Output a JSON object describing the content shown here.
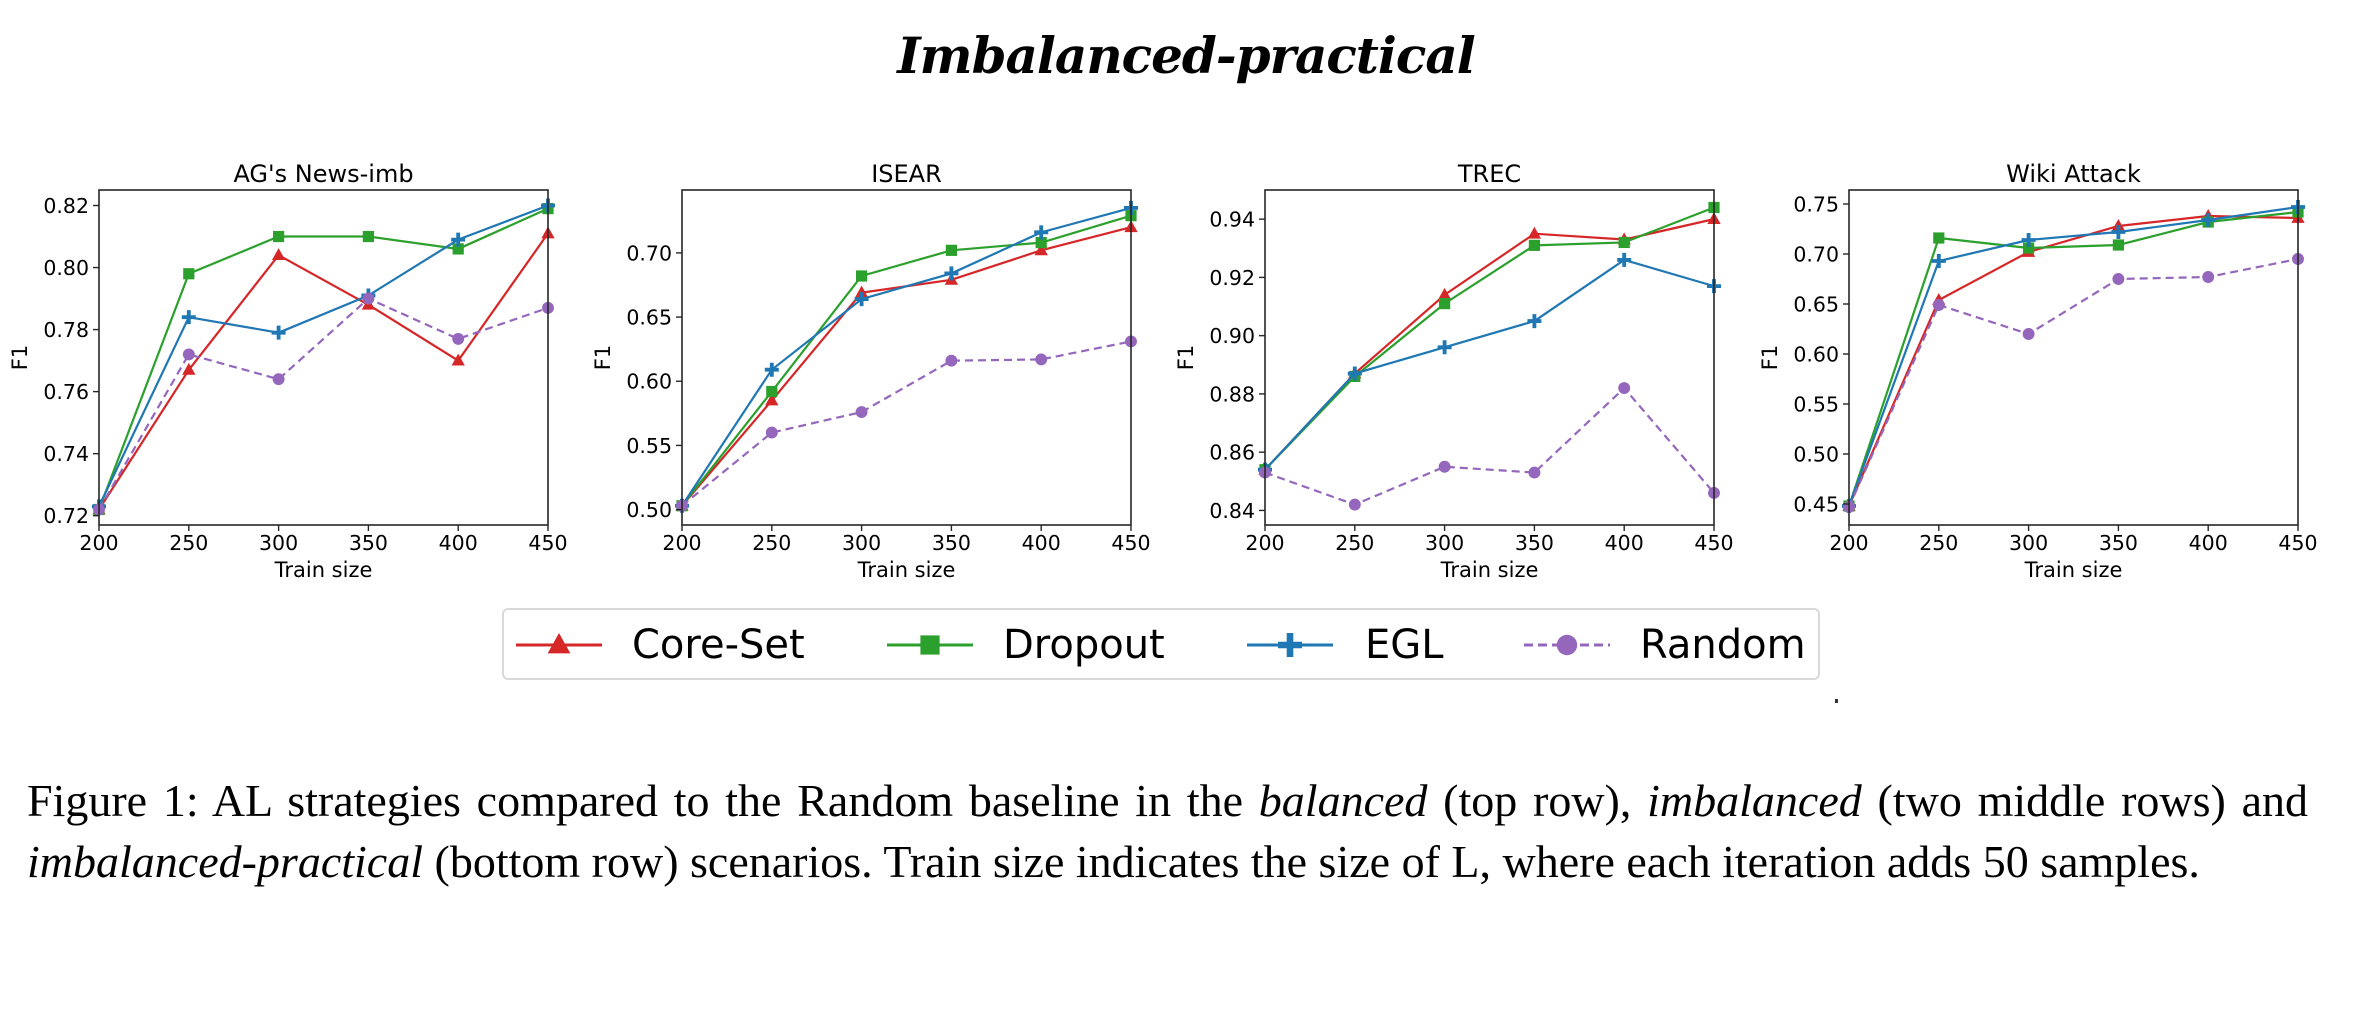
{
  "figure_title": "Imbalanced-practical",
  "colors": {
    "core_set": "#d62728",
    "dropout": "#2ca02c",
    "egl": "#1f77b4",
    "random": "#9467bd"
  },
  "legend": {
    "items": [
      {
        "label": "Core-Set",
        "color": "#d62728",
        "marker": "triangle",
        "dashed": false
      },
      {
        "label": "Dropout",
        "color": "#2ca02c",
        "marker": "square",
        "dashed": false
      },
      {
        "label": "EGL",
        "color": "#1f77b4",
        "marker": "plus",
        "dashed": false
      },
      {
        "label": "Random",
        "color": "#9467bd",
        "marker": "circle",
        "dashed": true
      }
    ]
  },
  "caption": {
    "part1": "Figure 1:  AL strategies compared to the Random baseline in the ",
    "em1": "balanced",
    "part2": " (top row), ",
    "em2": "imbalanced",
    "part3": " (two middle rows) and ",
    "em3": "imbalanced-practical",
    "part4": " (bottom row) scenarios.  Train size indicates the size of L, where each iteration adds 50 samples."
  },
  "chart_data": [
    {
      "type": "line",
      "title": "AG's News-imb",
      "xlabel": "Train size",
      "ylabel": "F1",
      "x": [
        200,
        250,
        300,
        350,
        400,
        450
      ],
      "xticks": [
        "200",
        "250",
        "300",
        "350",
        "400",
        "450"
      ],
      "xlim": [
        200,
        450
      ],
      "yticks": [
        "0.72",
        "0.74",
        "0.76",
        "0.78",
        "0.80",
        "0.82"
      ],
      "ylim": [
        0.717,
        0.825
      ],
      "grid": false,
      "series": [
        {
          "name": "Core-Set",
          "values": [
            0.722,
            0.767,
            0.804,
            0.788,
            0.77,
            0.811
          ]
        },
        {
          "name": "Dropout",
          "values": [
            0.722,
            0.798,
            0.81,
            0.81,
            0.806,
            0.819
          ]
        },
        {
          "name": "EGL",
          "values": [
            0.723,
            0.784,
            0.779,
            0.791,
            0.809,
            0.82
          ]
        },
        {
          "name": "Random",
          "values": [
            0.722,
            0.772,
            0.764,
            0.79,
            0.777,
            0.787
          ]
        }
      ]
    },
    {
      "type": "line",
      "title": "ISEAR",
      "xlabel": "Train size",
      "ylabel": "F1",
      "x": [
        200,
        250,
        300,
        350,
        400,
        450
      ],
      "xticks": [
        "200",
        "250",
        "300",
        "350",
        "400",
        "450"
      ],
      "xlim": [
        200,
        450
      ],
      "yticks": [
        "0.50",
        "0.55",
        "0.60",
        "0.65",
        "0.70"
      ],
      "ylim": [
        0.488,
        0.749
      ],
      "grid": false,
      "series": [
        {
          "name": "Core-Set",
          "values": [
            0.503,
            0.585,
            0.669,
            0.679,
            0.702,
            0.72
          ]
        },
        {
          "name": "Dropout",
          "values": [
            0.503,
            0.592,
            0.682,
            0.702,
            0.708,
            0.729
          ]
        },
        {
          "name": "EGL",
          "values": [
            0.503,
            0.609,
            0.664,
            0.684,
            0.716,
            0.735
          ]
        },
        {
          "name": "Random",
          "values": [
            0.503,
            0.56,
            0.576,
            0.616,
            0.617,
            0.631
          ]
        }
      ]
    },
    {
      "type": "line",
      "title": "TREC",
      "xlabel": "Train size",
      "ylabel": "F1",
      "x": [
        200,
        250,
        300,
        350,
        400,
        450
      ],
      "xticks": [
        "200",
        "250",
        "300",
        "350",
        "400",
        "450"
      ],
      "xlim": [
        200,
        450
      ],
      "yticks": [
        "0.84",
        "0.86",
        "0.88",
        "0.90",
        "0.92",
        "0.94"
      ],
      "ylim": [
        0.835,
        0.95
      ],
      "grid": false,
      "series": [
        {
          "name": "Core-Set",
          "values": [
            0.854,
            0.887,
            0.914,
            0.935,
            0.933,
            0.94
          ]
        },
        {
          "name": "Dropout",
          "values": [
            0.854,
            0.886,
            0.911,
            0.931,
            0.932,
            0.944
          ]
        },
        {
          "name": "EGL",
          "values": [
            0.854,
            0.887,
            0.896,
            0.905,
            0.926,
            0.917
          ]
        },
        {
          "name": "Random",
          "values": [
            0.853,
            0.842,
            0.855,
            0.853,
            0.882,
            0.846
          ]
        }
      ]
    },
    {
      "type": "line",
      "title": "Wiki Attack",
      "xlabel": "Train size",
      "ylabel": "F1",
      "x": [
        200,
        250,
        300,
        350,
        400,
        450
      ],
      "xticks": [
        "200",
        "250",
        "300",
        "350",
        "400",
        "450"
      ],
      "xlim": [
        200,
        450
      ],
      "yticks": [
        "0.45",
        "0.50",
        "0.55",
        "0.60",
        "0.65",
        "0.70",
        "0.75"
      ],
      "ylim": [
        0.429,
        0.764
      ],
      "grid": false,
      "series": [
        {
          "name": "Core-Set",
          "values": [
            0.448,
            0.654,
            0.702,
            0.728,
            0.738,
            0.736
          ]
        },
        {
          "name": "Dropout",
          "values": [
            0.448,
            0.716,
            0.706,
            0.709,
            0.732,
            0.742
          ]
        },
        {
          "name": "EGL",
          "values": [
            0.448,
            0.693,
            0.714,
            0.722,
            0.734,
            0.747
          ]
        },
        {
          "name": "Random",
          "values": [
            0.447,
            0.649,
            0.62,
            0.675,
            0.677,
            0.695
          ]
        }
      ]
    }
  ]
}
